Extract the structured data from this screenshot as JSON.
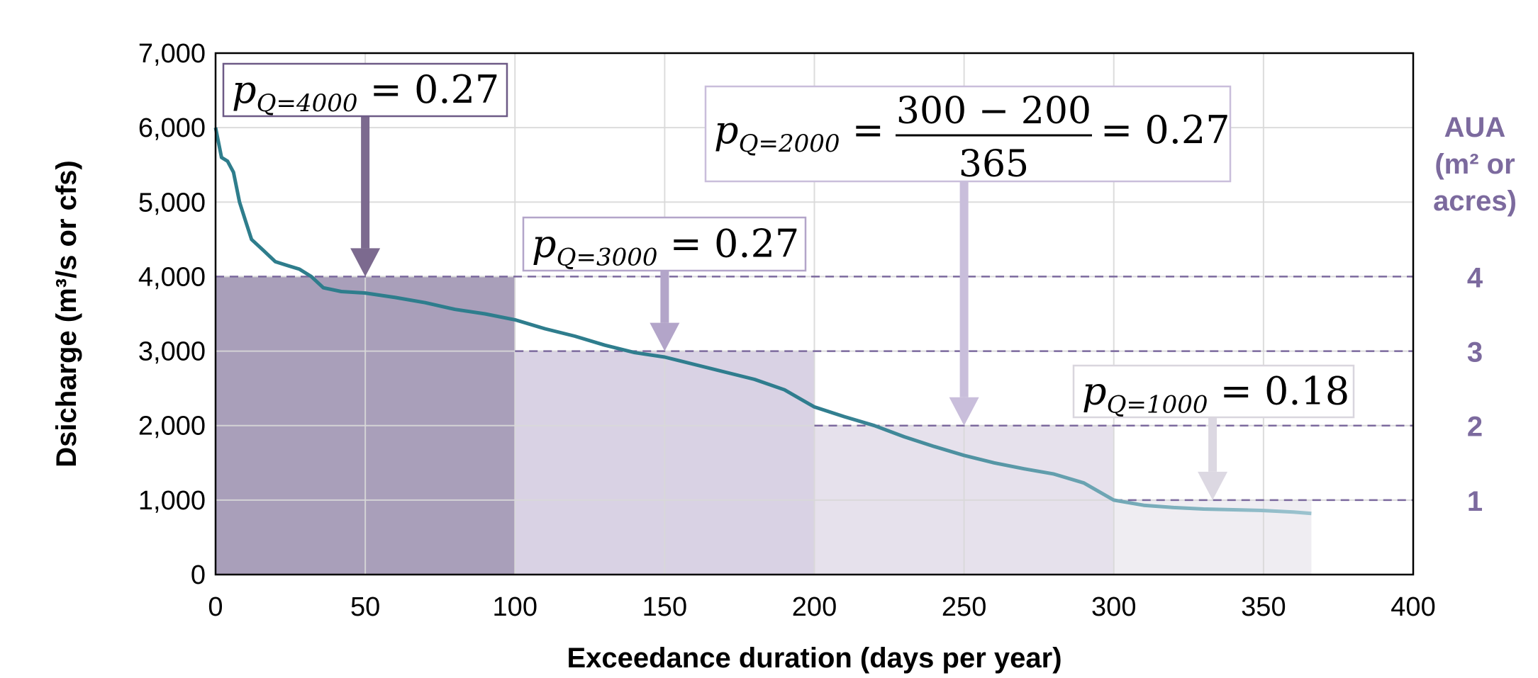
{
  "chart_data": {
    "type": "line",
    "title": "",
    "xlabel": "Exceedance duration (days per year)",
    "ylabel": "Dsicharge (m³/s or cfs)",
    "xlim": [
      0,
      400
    ],
    "ylim": [
      0,
      7000
    ],
    "x_ticks": [
      "0",
      "50",
      "100",
      "150",
      "200",
      "250",
      "300",
      "350",
      "400"
    ],
    "y_ticks": [
      "0",
      "1,000",
      "2,000",
      "3,000",
      "4,000",
      "5,000",
      "6,000",
      "7,000"
    ],
    "grid": true,
    "legend": "none",
    "series": [
      {
        "x": [
          0,
          2,
          4,
          6,
          8,
          10,
          12,
          16,
          20,
          24,
          28,
          32,
          36,
          42,
          50,
          60,
          70,
          80,
          90,
          100,
          110,
          120,
          130,
          140,
          150,
          160,
          170,
          180,
          190,
          200,
          210,
          220,
          230,
          240,
          250,
          260,
          270,
          280,
          290,
          300,
          310,
          320,
          330,
          340,
          350,
          360,
          366
        ],
        "y": [
          6000,
          5600,
          5550,
          5400,
          5000,
          4750,
          4500,
          4350,
          4200,
          4150,
          4100,
          4000,
          3850,
          3800,
          3780,
          3720,
          3650,
          3560,
          3500,
          3420,
          3300,
          3200,
          3080,
          2980,
          2920,
          2820,
          2720,
          2620,
          2480,
          2250,
          2120,
          2000,
          1850,
          1720,
          1600,
          1500,
          1420,
          1350,
          1230,
          1000,
          930,
          900,
          880,
          870,
          860,
          840,
          820
        ]
      }
    ],
    "shaded_regions": [
      {
        "x_start": 0,
        "x_end": 100,
        "y_top": 4000,
        "color": "#a99fba"
      },
      {
        "x_start": 100,
        "x_end": 200,
        "y_top": 3000,
        "color": "#d9d2e4"
      },
      {
        "x_start": 200,
        "x_end": 300,
        "y_top": 2000,
        "color": "#e6e1ec"
      },
      {
        "x_start": 300,
        "x_end": 366,
        "y_top": 1000,
        "color": "#efedf2"
      }
    ],
    "aua_axis": {
      "label_lines": [
        "AUA",
        "(m² or",
        "acres)"
      ],
      "levels": [
        {
          "y": 4000,
          "label": "4"
        },
        {
          "y": 3000,
          "label": "3"
        },
        {
          "y": 2000,
          "label": "2"
        },
        {
          "y": 1000,
          "label": "1"
        }
      ],
      "color": "#7c6a9e"
    },
    "annotations": [
      {
        "p": "p",
        "sub": "Q=4000",
        "rhs": "= 0.27",
        "arrow_x": 50,
        "arrow_to_y": 4000,
        "color": "#7c6a8f"
      },
      {
        "p": "p",
        "sub": "Q=3000",
        "rhs": "= 0.27",
        "arrow_x": 150,
        "arrow_to_y": 3000,
        "color": "#b3a5c9"
      },
      {
        "p": "p",
        "sub": "Q=2000",
        "rhs": "= 0.27",
        "frac_num": "300 − 200",
        "frac_den": "365",
        "arrow_x": 250,
        "arrow_to_y": 2000,
        "color": "#c9bedb"
      },
      {
        "p": "p",
        "sub": "Q=1000",
        "rhs": "= 0.18",
        "arrow_x": 333,
        "arrow_to_y": 1000,
        "color": "#dcd8e2"
      }
    ]
  }
}
